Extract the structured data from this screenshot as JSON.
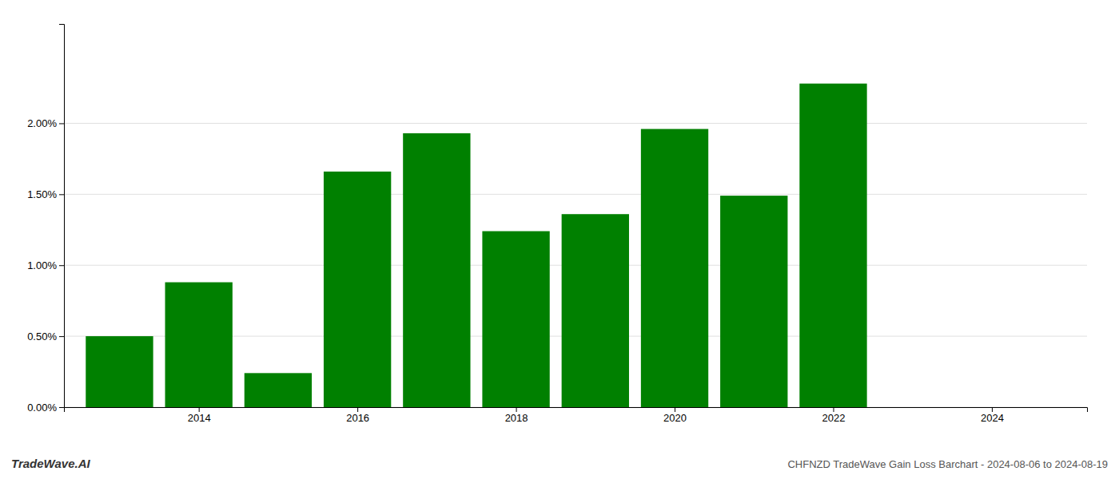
{
  "chart_data": {
    "type": "bar",
    "title": "CHFNZD TradeWave Gain Loss Barchart - 2024-08-06 to 2024-08-19",
    "annotations": [
      "TradeWave.AI"
    ],
    "x": [
      2013,
      2014,
      2015,
      2016,
      2017,
      2018,
      2019,
      2020,
      2021,
      2022
    ],
    "values": [
      0.005,
      0.0088,
      0.0024,
      0.0166,
      0.0193,
      0.0124,
      0.0136,
      0.0196,
      0.0149,
      0.0228
    ],
    "color": "#008000",
    "xlim": [
      2012.3,
      2025.2
    ],
    "xticks": [
      2014,
      2016,
      2018,
      2020,
      2022,
      2024
    ],
    "ylim": [
      0,
      0.027
    ],
    "yticks": [
      {
        "value": 0.0,
        "label": "0.00%"
      },
      {
        "value": 0.005,
        "label": "0.50%"
      },
      {
        "value": 0.01,
        "label": "1.00%"
      },
      {
        "value": 0.015,
        "label": "1.50%"
      },
      {
        "value": 0.02,
        "label": "2.00%"
      }
    ],
    "grid": true
  }
}
